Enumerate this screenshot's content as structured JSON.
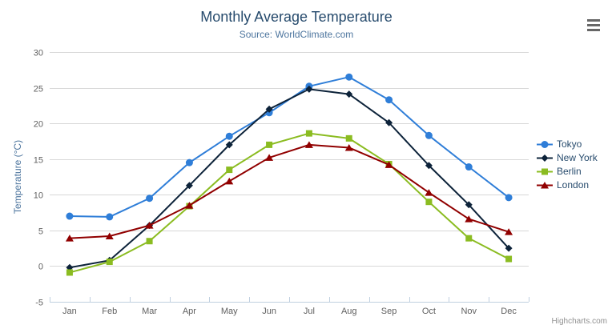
{
  "chart_data": {
    "type": "line",
    "title": "Monthly Average Temperature",
    "subtitle": "Source: WorldClimate.com",
    "categories": [
      "Jan",
      "Feb",
      "Mar",
      "Apr",
      "May",
      "Jun",
      "Jul",
      "Aug",
      "Sep",
      "Oct",
      "Nov",
      "Dec"
    ],
    "series": [
      {
        "name": "Tokyo",
        "color": "#2f7ed8",
        "marker": "circle",
        "values": [
          7.0,
          6.9,
          9.5,
          14.5,
          18.2,
          21.5,
          25.2,
          26.5,
          23.3,
          18.3,
          13.9,
          9.6
        ]
      },
      {
        "name": "New York",
        "color": "#0d233a",
        "marker": "diamond",
        "values": [
          -0.2,
          0.8,
          5.7,
          11.3,
          17.0,
          22.0,
          24.8,
          24.1,
          20.1,
          14.1,
          8.6,
          2.5
        ]
      },
      {
        "name": "Berlin",
        "color": "#8bbc21",
        "marker": "square",
        "values": [
          -0.9,
          0.6,
          3.5,
          8.4,
          13.5,
          17.0,
          18.6,
          17.9,
          14.3,
          9.0,
          3.9,
          1.0
        ]
      },
      {
        "name": "London",
        "color": "#910000",
        "marker": "triangle",
        "values": [
          3.9,
          4.2,
          5.7,
          8.5,
          11.9,
          15.2,
          17.0,
          16.6,
          14.2,
          10.3,
          6.6,
          4.8
        ]
      }
    ],
    "xlabel": "",
    "ylabel": "Temperature (°C)",
    "ylim": [
      -5,
      30
    ],
    "ytick_step": 5,
    "grid": true,
    "legend_position": "right"
  },
  "credits": {
    "label": "Highcharts.com"
  },
  "export_menu": {
    "icon": "hamburger-icon"
  },
  "colors": {
    "title": "#274b6d",
    "subtitle": "#4d759e",
    "axis_label": "#606060",
    "axis_title": "#4d759e",
    "legend_text": "#274b6d",
    "gridline": "#d8d8d8",
    "axis_line": "#c0d0e0",
    "credits": "#909090"
  }
}
